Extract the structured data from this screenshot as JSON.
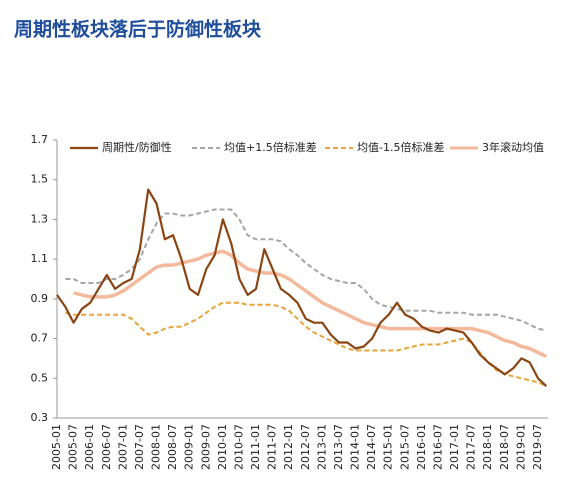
{
  "chart_data": {
    "type": "line",
    "title": "周期性板块落后于防御性板块",
    "categories": [
      "2005-01",
      null,
      "2005-07",
      null,
      "2006-01",
      null,
      "2006-07",
      null,
      "2007-01",
      null,
      "2007-07",
      null,
      "2008-01",
      null,
      "2008-07",
      null,
      "2009-01",
      null,
      "2009-07",
      null,
      "2010-01",
      null,
      "2010-07",
      null,
      "2011-01",
      null,
      "2011-07",
      null,
      "2012-01",
      null,
      "2012-07",
      null,
      "2013-01",
      null,
      "2013-07",
      null,
      "2014-01",
      null,
      "2014-07",
      null,
      "2015-01",
      null,
      "2015-07",
      null,
      "2016-01",
      null,
      "2016-07",
      null,
      "2017-01",
      null,
      "2017-07",
      null,
      "2018-01",
      null,
      "2018-07",
      null,
      "2019-01",
      null,
      "2019-07",
      null
    ],
    "series": [
      {
        "name": "周期性/防御性",
        "color": "#8b4513",
        "width": 2.2,
        "dashed": false,
        "values": [
          0.92,
          0.86,
          0.78,
          0.85,
          0.88,
          0.95,
          1.02,
          0.95,
          0.98,
          1.0,
          1.15,
          1.45,
          1.38,
          1.2,
          1.22,
          1.1,
          0.95,
          0.92,
          1.05,
          1.12,
          1.3,
          1.18,
          1.0,
          0.92,
          0.95,
          1.15,
          1.05,
          0.95,
          0.92,
          0.88,
          0.8,
          0.78,
          0.78,
          0.72,
          0.68,
          0.68,
          0.65,
          0.66,
          0.7,
          0.78,
          0.82,
          0.88,
          0.82,
          0.8,
          0.76,
          0.74,
          0.73,
          0.75,
          0.74,
          0.73,
          0.68,
          0.62,
          0.58,
          0.55,
          0.52,
          0.55,
          0.6,
          0.58,
          0.5,
          0.46
        ]
      },
      {
        "name": "均值+1.5倍标准差",
        "color": "#a6a6a6",
        "width": 2,
        "dashed": true,
        "values": [
          null,
          1.0,
          1.0,
          0.98,
          0.98,
          0.98,
          1.0,
          1.0,
          1.02,
          1.05,
          1.1,
          1.2,
          1.28,
          1.33,
          1.33,
          1.32,
          1.32,
          1.33,
          1.34,
          1.35,
          1.35,
          1.35,
          1.3,
          1.22,
          1.2,
          1.2,
          1.2,
          1.19,
          1.15,
          1.12,
          1.08,
          1.05,
          1.02,
          1.0,
          0.99,
          0.98,
          0.98,
          0.95,
          0.9,
          0.87,
          0.86,
          0.85,
          0.84,
          0.84,
          0.84,
          0.84,
          0.83,
          0.83,
          0.83,
          0.83,
          0.82,
          0.82,
          0.82,
          0.82,
          0.81,
          0.8,
          0.79,
          0.77,
          0.75,
          0.74
        ]
      },
      {
        "name": "均值-1.5倍标准差",
        "color": "#e8a33a",
        "width": 2,
        "dashed": true,
        "values": [
          null,
          0.83,
          0.82,
          0.82,
          0.82,
          0.82,
          0.82,
          0.82,
          0.82,
          0.8,
          0.76,
          0.72,
          0.73,
          0.75,
          0.76,
          0.76,
          0.78,
          0.8,
          0.83,
          0.86,
          0.88,
          0.88,
          0.88,
          0.87,
          0.87,
          0.87,
          0.87,
          0.86,
          0.84,
          0.8,
          0.76,
          0.73,
          0.71,
          0.69,
          0.67,
          0.65,
          0.64,
          0.64,
          0.64,
          0.64,
          0.64,
          0.64,
          0.65,
          0.66,
          0.67,
          0.67,
          0.67,
          0.68,
          0.69,
          0.7,
          0.68,
          0.63,
          0.58,
          0.54,
          0.52,
          0.51,
          0.5,
          0.49,
          0.48,
          0.46
        ]
      },
      {
        "name": "3年滚动均值",
        "color": "#f4b89a",
        "width": 3.5,
        "dashed": false,
        "values": [
          null,
          null,
          0.93,
          0.92,
          0.91,
          0.91,
          0.91,
          0.92,
          0.94,
          0.97,
          1.0,
          1.03,
          1.06,
          1.07,
          1.07,
          1.08,
          1.09,
          1.1,
          1.12,
          1.13,
          1.14,
          1.12,
          1.08,
          1.05,
          1.04,
          1.03,
          1.03,
          1.02,
          1.0,
          0.97,
          0.94,
          0.91,
          0.88,
          0.86,
          0.84,
          0.82,
          0.8,
          0.78,
          0.77,
          0.76,
          0.75,
          0.75,
          0.75,
          0.75,
          0.75,
          0.75,
          0.75,
          0.75,
          0.75,
          0.75,
          0.75,
          0.74,
          0.73,
          0.71,
          0.69,
          0.68,
          0.66,
          0.65,
          0.63,
          0.61
        ]
      }
    ],
    "ylim": [
      0.3,
      1.7
    ],
    "yticks": [
      0.3,
      0.5,
      0.7,
      0.9,
      1.1,
      1.3,
      1.5,
      1.7
    ],
    "grid": false
  }
}
